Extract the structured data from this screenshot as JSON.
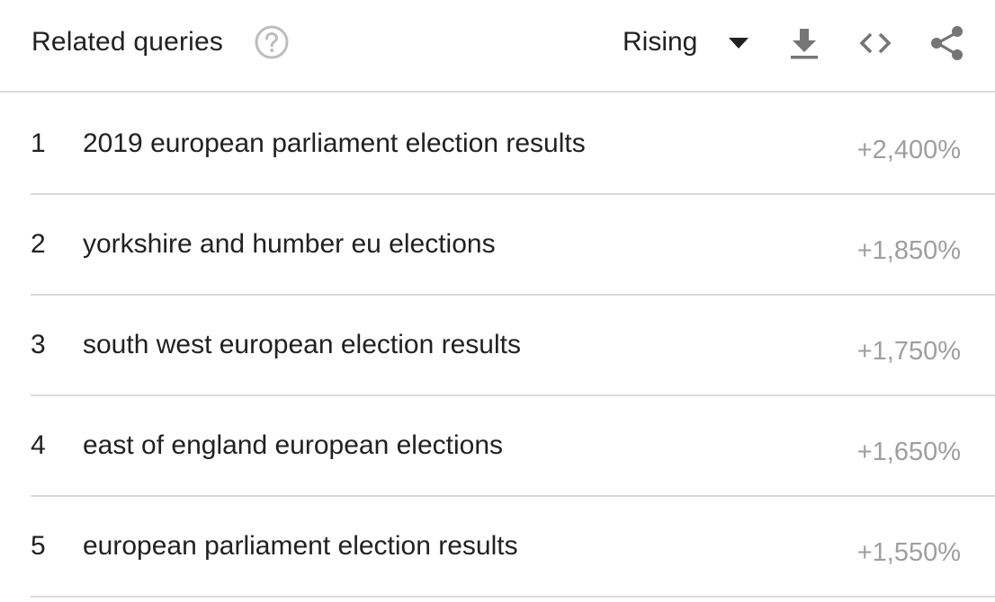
{
  "header": {
    "title": "Related queries",
    "help_icon": "help-circle-icon",
    "dropdown": {
      "selected": "Rising",
      "icon": "arrow-drop-down-icon"
    },
    "tools": [
      {
        "name": "download",
        "icon": "download-icon"
      },
      {
        "name": "embed",
        "icon": "code-brackets-icon"
      },
      {
        "name": "share",
        "icon": "share-icon"
      }
    ]
  },
  "queries": [
    {
      "rank": "1",
      "query": "2019 european parliament election results",
      "value": "+2,400%"
    },
    {
      "rank": "2",
      "query": "yorkshire and humber eu elections",
      "value": "+1,850%"
    },
    {
      "rank": "3",
      "query": "south west european election results",
      "value": "+1,750%"
    },
    {
      "rank": "4",
      "query": "east of england european elections",
      "value": "+1,650%"
    },
    {
      "rank": "5",
      "query": "european parliament election results",
      "value": "+1,550%"
    }
  ],
  "colors": {
    "text": "#212121",
    "muted": "#9e9e9e",
    "icon": "#757575",
    "help_icon": "#bdbdbd",
    "divider": "#dadada"
  }
}
